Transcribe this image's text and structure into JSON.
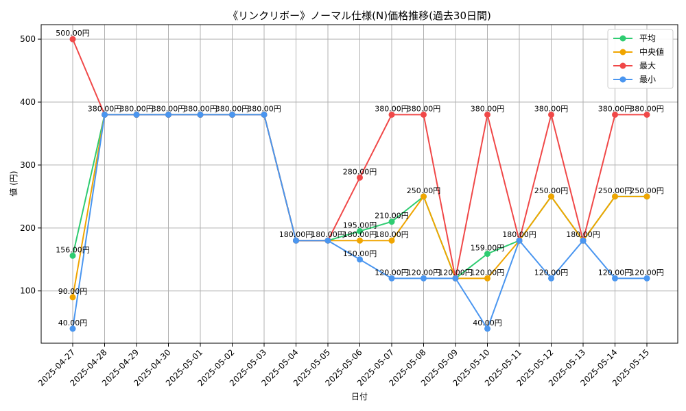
{
  "chart_data": {
    "type": "line",
    "title": "《リンクリボー》ノーマル仕様(N)価格推移(過去30日間)",
    "xlabel": "日付",
    "ylabel": "値 (円)",
    "ylim": [
      17,
      523
    ],
    "yticks": [
      100,
      200,
      300,
      400,
      500
    ],
    "grid": true,
    "legend_position": "top-right",
    "label_suffix": "円",
    "categories": [
      "2025-04-27",
      "2025-04-28",
      "2025-04-29",
      "2025-04-30",
      "2025-05-01",
      "2025-05-02",
      "2025-05-03",
      "2025-05-04",
      "2025-05-05",
      "2025-05-06",
      "2025-05-07",
      "2025-05-08",
      "2025-05-09",
      "2025-05-10",
      "2025-05-11",
      "2025-05-12",
      "2025-05-13",
      "2025-05-14",
      "2025-05-15"
    ],
    "series": [
      {
        "name": "平均",
        "color": "#2ecc71",
        "values": [
          156,
          380,
          380,
          380,
          380,
          380,
          380,
          180,
          180,
          195,
          210,
          250,
          120,
          159,
          180,
          250,
          180,
          250,
          250
        ]
      },
      {
        "name": "中央値",
        "color": "#f0a500",
        "values": [
          90,
          380,
          380,
          380,
          380,
          380,
          380,
          180,
          180,
          180,
          180,
          250,
          120,
          120,
          180,
          250,
          180,
          250,
          250
        ]
      },
      {
        "name": "最大",
        "color": "#f04848",
        "values": [
          500,
          380,
          380,
          380,
          380,
          380,
          380,
          180,
          180,
          280,
          380,
          380,
          120,
          380,
          180,
          380,
          180,
          380,
          380
        ]
      },
      {
        "name": "最小",
        "color": "#4a96f0",
        "values": [
          40,
          380,
          380,
          380,
          380,
          380,
          380,
          180,
          180,
          150,
          120,
          120,
          120,
          40,
          180,
          120,
          180,
          120,
          120
        ]
      }
    ]
  }
}
